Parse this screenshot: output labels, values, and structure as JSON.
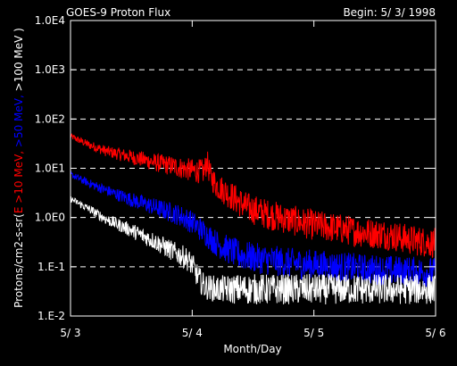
{
  "chart_data": {
    "type": "line",
    "title": "GOES-9 Proton Flux",
    "begin_label": "Begin: 5/ 3/ 1998",
    "xlabel": "Month/Day",
    "ylabel": {
      "prefix": "Protons/cm2-s-sr(",
      "parts": [
        {
          "text": "E >10 MeV, ",
          "color": "#ff0000"
        },
        {
          "text": ">50 MeV, ",
          "color": "#0000ff"
        },
        {
          "text": ">100 MeV )",
          "color": "#ffffff"
        }
      ]
    },
    "x_unit": "days since 5/3",
    "xlim": [
      0,
      3
    ],
    "x_ticks": [
      {
        "value": 0,
        "label": "5/ 3"
      },
      {
        "value": 1,
        "label": "5/ 4"
      },
      {
        "value": 2,
        "label": "5/ 5"
      },
      {
        "value": 3,
        "label": "5/ 6"
      }
    ],
    "y_scale": "log",
    "ylim": [
      0.01,
      10000
    ],
    "y_ticks": [
      {
        "value": 10000,
        "label": "1.0E4"
      },
      {
        "value": 1000,
        "label": "1.0E3"
      },
      {
        "value": 100,
        "label": "1.0E2"
      },
      {
        "value": 10,
        "label": "1.0E1"
      },
      {
        "value": 1,
        "label": "1.0E0"
      },
      {
        "value": 0.1,
        "label": "1.E-1"
      },
      {
        "value": 0.01,
        "label": "1.E-2"
      }
    ],
    "gridlines": [
      1000,
      100,
      10,
      1,
      0.1
    ],
    "grid": "dashed horizontal",
    "background": "#000000",
    "series": [
      {
        "name": "E >10 MeV",
        "color": "#ff0000",
        "x": [
          0,
          0.15,
          0.3,
          0.5,
          0.7,
          0.85,
          1.0,
          1.1,
          1.12,
          1.15,
          1.2,
          1.3,
          1.45,
          1.6,
          1.8,
          2.0,
          2.2,
          2.4,
          2.6,
          2.8,
          3.0
        ],
        "y": [
          45,
          30,
          22,
          17,
          13,
          11,
          9,
          8.5,
          14,
          7,
          4.5,
          3,
          1.6,
          1.2,
          0.9,
          0.7,
          0.6,
          0.5,
          0.45,
          0.35,
          0.3
        ]
      },
      {
        "name": ">50 MeV",
        "color": "#0000ff",
        "x": [
          0,
          0.15,
          0.3,
          0.5,
          0.7,
          0.9,
          1.0,
          1.1,
          1.2,
          1.3,
          1.4,
          1.6,
          1.8,
          2.0,
          2.2,
          2.4,
          2.6,
          2.8,
          3.0
        ],
        "y": [
          7.5,
          5,
          3.5,
          2.3,
          1.6,
          1.1,
          0.8,
          0.5,
          0.3,
          0.22,
          0.17,
          0.14,
          0.12,
          0.11,
          0.1,
          0.09,
          0.085,
          0.08,
          0.075
        ]
      },
      {
        "name": ">100 MeV",
        "color": "#ffffff",
        "x": [
          0,
          0.15,
          0.3,
          0.5,
          0.7,
          0.85,
          0.95,
          1.0,
          1.05,
          1.1,
          1.2,
          1.4,
          1.6,
          1.8,
          2.0,
          2.2,
          2.4,
          2.6,
          2.8,
          3.0
        ],
        "y": [
          2.4,
          1.5,
          0.9,
          0.55,
          0.32,
          0.2,
          0.15,
          0.11,
          0.06,
          0.04,
          0.035,
          0.035,
          0.035,
          0.035,
          0.035,
          0.035,
          0.035,
          0.035,
          0.035,
          0.035
        ]
      }
    ]
  }
}
